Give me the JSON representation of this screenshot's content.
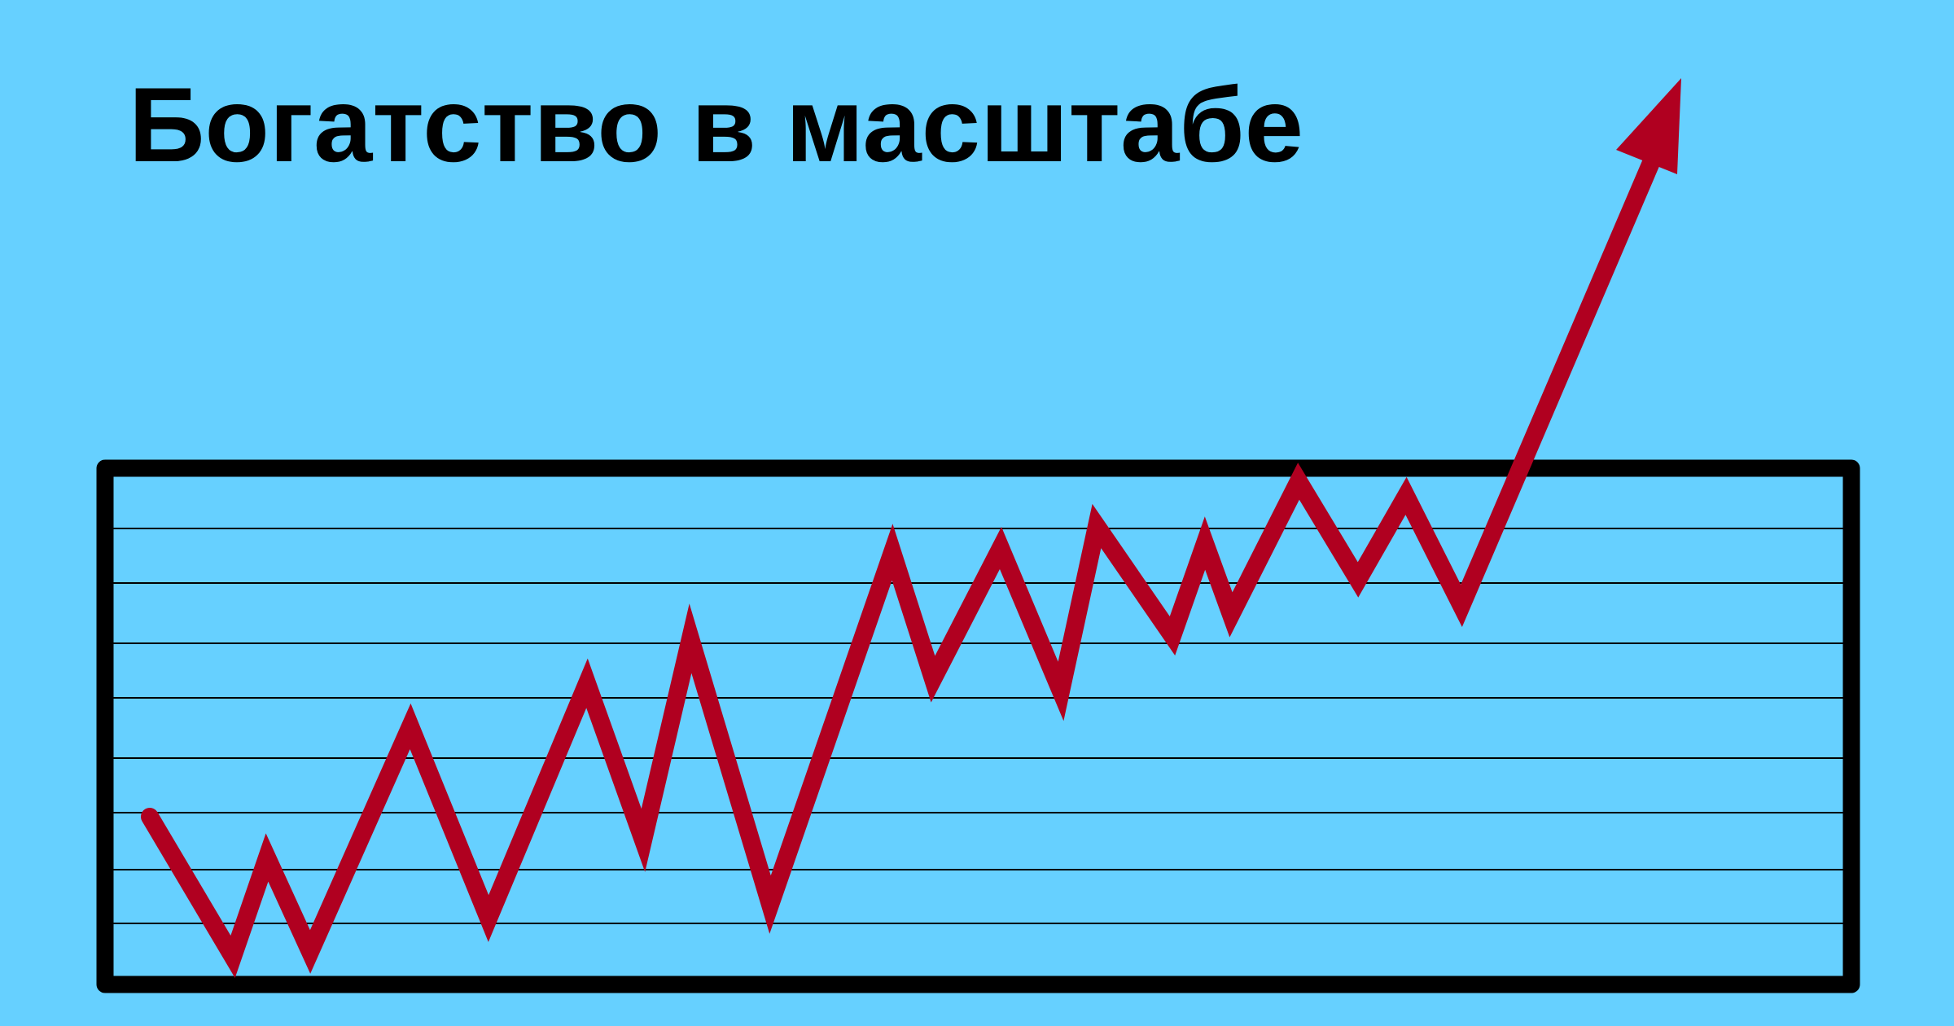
{
  "header": {
    "title": "Богатство в масштабе"
  }
}
